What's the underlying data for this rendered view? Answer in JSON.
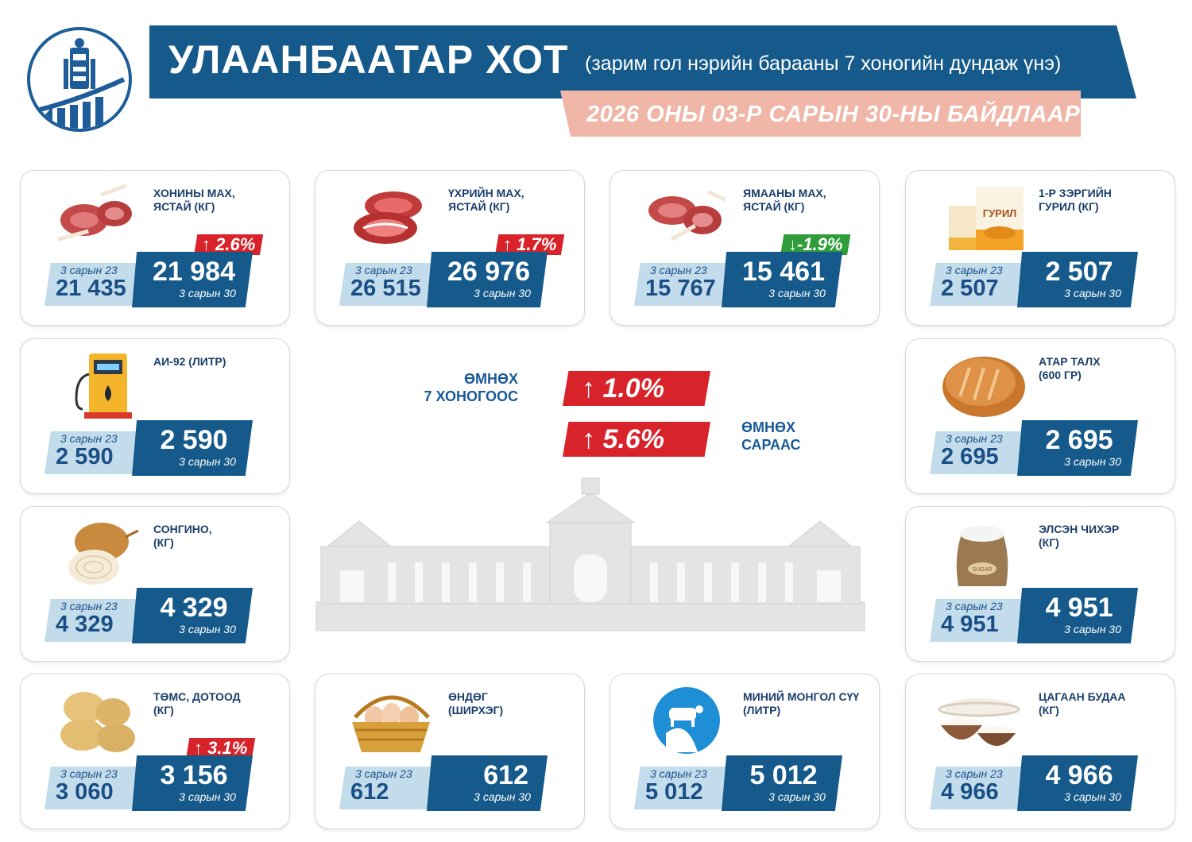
{
  "header": {
    "title": "УЛААНБААТАР ХОТ",
    "subtitle": "(зарим гол нэрийн барааны 7 хоногийн дундаж үнэ)",
    "date": "2026 ОНЫ 03-Р САРЫН 30-НЫ БАЙДЛААР"
  },
  "colors": {
    "brand": "#155a8a",
    "light": "#c3dcec",
    "up": "#d8232a",
    "down": "#2e9d3a",
    "date_band": "#f0b6a8"
  },
  "products": [
    {
      "name": "ХОНИНЫ МАХ,\nЯСТАЙ (КГ)",
      "icon": "lamb-meat-icon",
      "prev_label": "3 сарын 23",
      "prev": "21 435",
      "cur": "21 984",
      "cur_label": "3 сарын 30",
      "change": "↑ 2.6%"
    },
    {
      "name": "ҮХРИЙН МАХ,\nЯСТАЙ (КГ)",
      "icon": "beef-icon",
      "prev_label": "3 сарын 23",
      "prev": "26 515",
      "cur": "26 976",
      "cur_label": "3 сарын 30",
      "change": "↑ 1.7%"
    },
    {
      "name": "ЯМААНЫ МАХ,\nЯСТАЙ (КГ)",
      "icon": "goat-meat-icon",
      "prev_label": "3 сарын 23",
      "prev": "15 767",
      "cur": "15 461",
      "cur_label": "3 сарын 30",
      "change": "↓-1.9%"
    },
    {
      "name": "1-Р ЗЭРГИЙН\nГУРИЛ (КГ)",
      "icon": "flour-bag-icon",
      "flour_text": "ГУРИЛ",
      "prev_label": "3 сарын 23",
      "prev": "2 507",
      "cur": "2 507",
      "cur_label": "3 сарын 30"
    },
    {
      "name": "АИ-92 (ЛИТР)",
      "icon": "fuel-pump-icon",
      "prev_label": "3 сарын 23",
      "prev": "2 590",
      "cur": "2 590",
      "cur_label": "3 сарын 30"
    },
    {
      "name": "АТАР ТАЛХ\n (600 ГР)",
      "icon": "bread-icon",
      "prev_label": "3 сарын 23",
      "prev": "2 695",
      "cur": "2 695",
      "cur_label": "3 сарын 30"
    },
    {
      "name": "СОНГИНО,\n(КГ)",
      "icon": "onion-icon",
      "prev_label": "3 сарын 23",
      "prev": "4 329",
      "cur": "4 329",
      "cur_label": "3 сарын 30"
    },
    {
      "name": "ЭЛСЭН ЧИХЭР\n(КГ)",
      "icon": "sugar-sack-icon",
      "sack_text": "SUGAR",
      "prev_label": "3 сарын 23",
      "prev": "4 951",
      "cur": "4 951",
      "cur_label": "3 сарын 30"
    },
    {
      "name": "ТӨМС, ДОТООД\n(КГ)",
      "icon": "potato-icon",
      "prev_label": "3 сарын 23",
      "prev": "3 060",
      "cur": "3 156",
      "cur_label": "3 сарын 30",
      "change": "↑ 3.1%"
    },
    {
      "name": "ӨНДӨГ\n(ШИРХЭГ)",
      "icon": "egg-basket-icon",
      "prev_label": "3 сарын 23",
      "prev": "612",
      "cur": "612",
      "cur_label": "3 сарын 30"
    },
    {
      "name": "МИНИЙ МОНГОЛ СҮҮ\n(ЛИТР)",
      "icon": "milk-icon",
      "prev_label": "3 сарын 23",
      "prev": "5 012",
      "cur": "5 012",
      "cur_label": "3 сарын 30"
    },
    {
      "name": "ЦАГААН БУДАА\n(КГ)",
      "icon": "rice-bowl-icon",
      "prev_label": "3 сарын 23",
      "prev": "4 966",
      "cur": "4 966",
      "cur_label": "3 сарын 30"
    }
  ],
  "summary": {
    "week_label": "ӨМНӨХ\n7 ХОНОГООС",
    "week_change": "↑  1.0%",
    "month_label": "ӨМНӨХ\nСАРААС",
    "month_change": "↑  5.6%"
  }
}
